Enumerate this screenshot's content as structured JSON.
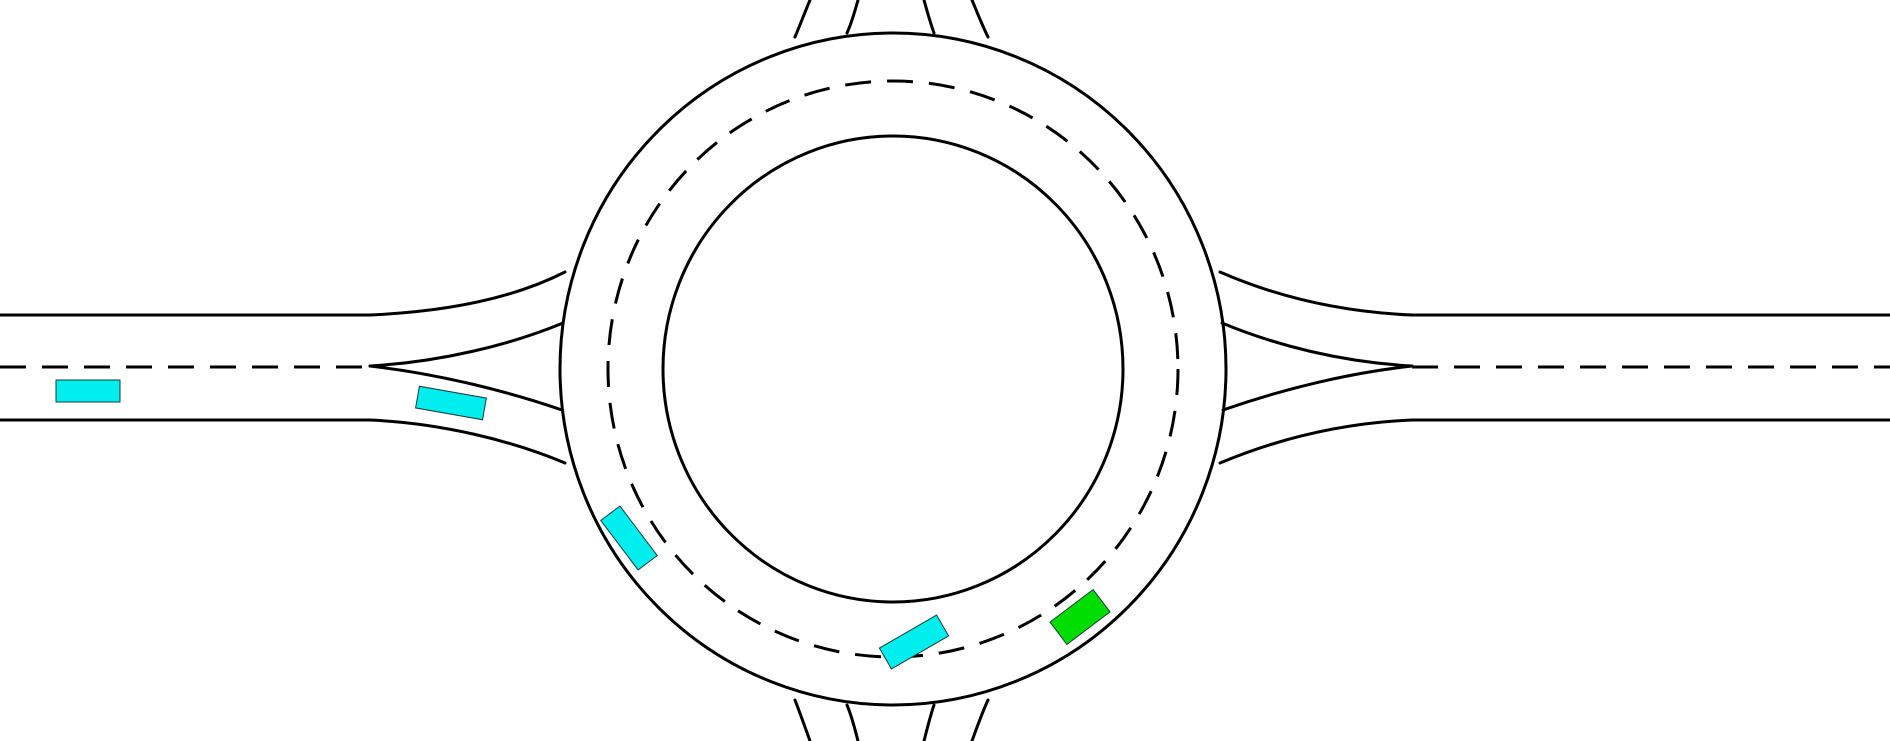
{
  "scene": {
    "type": "roundabout-traffic-simulation",
    "background_color": "#ffffff",
    "line_color": "#000000"
  },
  "vehicles": [
    {
      "id": "vehicle-1",
      "role": "other",
      "color": "#00eeee",
      "heading_deg": 0
    },
    {
      "id": "vehicle-2",
      "role": "other",
      "color": "#00eeee",
      "heading_deg": 10
    },
    {
      "id": "vehicle-3",
      "role": "other",
      "color": "#00eeee",
      "heading_deg": 53
    },
    {
      "id": "vehicle-4",
      "role": "other",
      "color": "#00eeee",
      "heading_deg": -30
    },
    {
      "id": "vehicle-5",
      "role": "ego",
      "color": "#00dd00",
      "heading_deg": -37
    }
  ]
}
